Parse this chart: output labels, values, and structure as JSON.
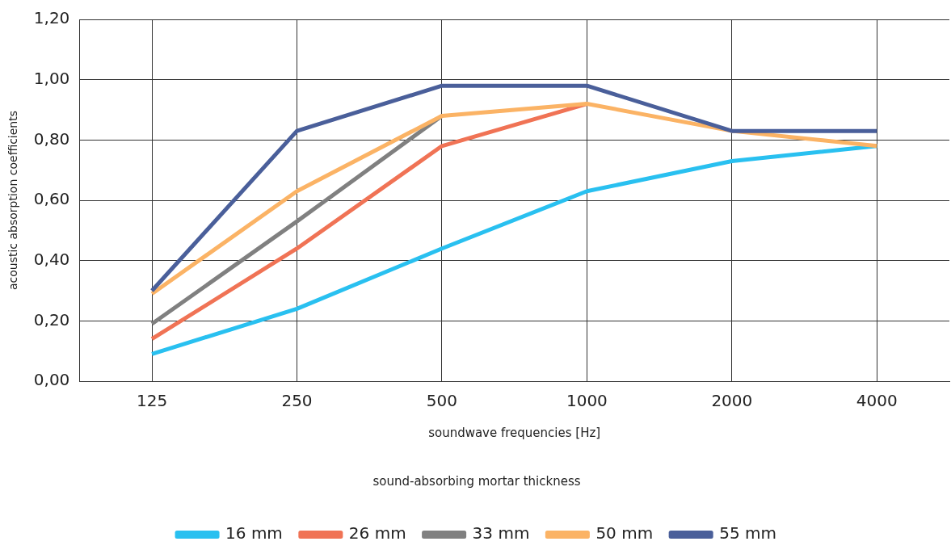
{
  "chart_data": {
    "type": "line",
    "xlabel": "soundwave frequencies [Hz]",
    "ylabel": "acoustic absorption coefficients",
    "legend_title": "sound-absorbing mortar thickness",
    "categories": [
      "125",
      "250",
      "500",
      "1000",
      "2000",
      "4000"
    ],
    "series": [
      {
        "name": "16 mm",
        "color": "#29c0f0",
        "values": [
          0.09,
          0.24,
          0.44,
          0.63,
          0.73,
          0.78
        ]
      },
      {
        "name": "26 mm",
        "color": "#f07355",
        "values": [
          0.14,
          0.44,
          0.78,
          0.92,
          null,
          null
        ]
      },
      {
        "name": "33 mm",
        "color": "#808080",
        "values": [
          0.19,
          0.53,
          0.88,
          null,
          null,
          null
        ]
      },
      {
        "name": "50 mm",
        "color": "#fbb365",
        "values": [
          0.29,
          0.63,
          0.88,
          0.92,
          0.83,
          0.78
        ]
      },
      {
        "name": "55 mm",
        "color": "#4a5f9a",
        "values": [
          0.3,
          0.83,
          0.98,
          0.98,
          0.83,
          0.83
        ]
      }
    ],
    "ylim": [
      0,
      1.2
    ],
    "yticks": [
      {
        "value": 0,
        "label": "0,00"
      },
      {
        "value": 0.2,
        "label": "0,20"
      },
      {
        "value": 0.4,
        "label": "0,40"
      },
      {
        "value": 0.6,
        "label": "0,60"
      },
      {
        "value": 0.8,
        "label": "0,80"
      },
      {
        "value": 1,
        "label": "1,00"
      },
      {
        "value": 1.2,
        "label": "1,20"
      }
    ],
    "grid": true,
    "legend": "bottom",
    "marker": "none",
    "line_style": "solid"
  }
}
